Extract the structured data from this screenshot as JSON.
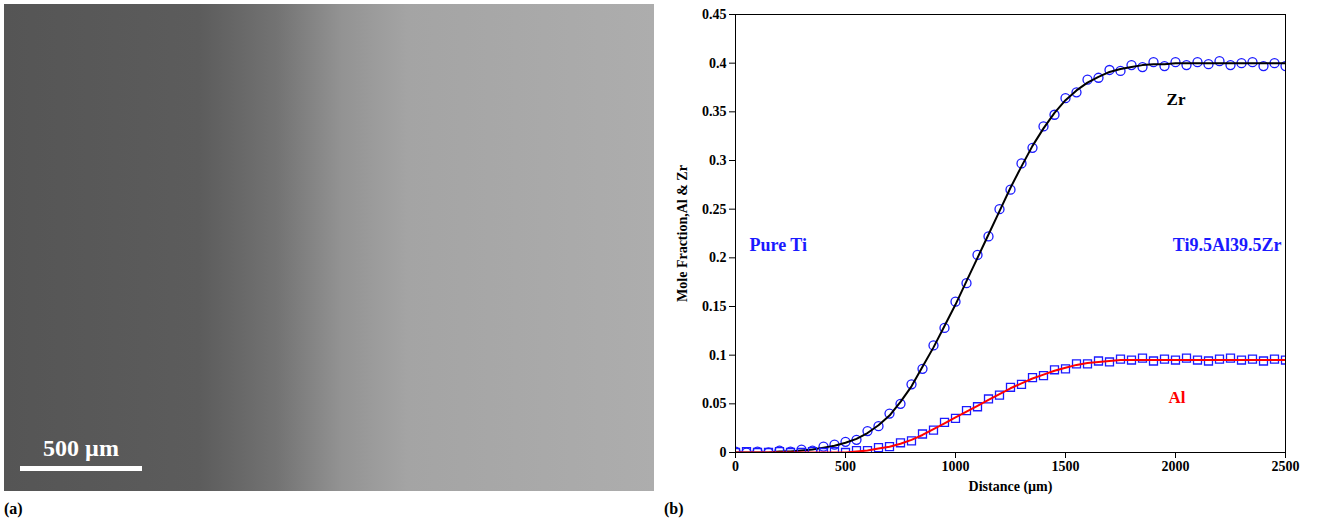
{
  "image": {
    "panel": "(a)",
    "scale_bar": "500 µm"
  },
  "chart_data": {
    "type": "scatter",
    "panel": "(b)",
    "x_label": "Distance (µm)",
    "y_label": "Mole Fraction,Al & Zr",
    "annotations": [
      "Pure Ti",
      "Ti9.5Al39.5Zr"
    ],
    "xlim": [
      0,
      2500
    ],
    "xticks": [
      0,
      500,
      1000,
      1500,
      2000,
      2500
    ],
    "ylim": [
      0,
      0.45
    ],
    "yticks": [
      0,
      0.05,
      0.1,
      0.15,
      0.2,
      0.25,
      0.3,
      0.35,
      0.4,
      0.45
    ],
    "grid": false,
    "x": [
      0,
      50,
      100,
      150,
      200,
      250,
      300,
      350,
      400,
      450,
      500,
      550,
      600,
      650,
      700,
      750,
      800,
      850,
      900,
      950,
      1000,
      1050,
      1100,
      1150,
      1200,
      1250,
      1300,
      1350,
      1400,
      1450,
      1500,
      1550,
      1600,
      1650,
      1700,
      1750,
      1800,
      1850,
      1900,
      1950,
      2000,
      2050,
      2100,
      2150,
      2200,
      2250,
      2300,
      2350,
      2400,
      2450,
      2500
    ],
    "series": [
      {
        "name": "Zr",
        "type": "scatter",
        "marker": "circle",
        "color": "#1a1aff",
        "values": [
          0.001,
          0,
          0.001,
          0,
          0.002,
          0.001,
          0.003,
          0.002,
          0.006,
          0.008,
          0.011,
          0.013,
          0.022,
          0.027,
          0.04,
          0.05,
          0.07,
          0.086,
          0.11,
          0.128,
          0.155,
          0.174,
          0.203,
          0.222,
          0.25,
          0.27,
          0.297,
          0.313,
          0.335,
          0.347,
          0.364,
          0.37,
          0.383,
          0.385,
          0.393,
          0.392,
          0.398,
          0.396,
          0.401,
          0.397,
          0.401,
          0.398,
          0.401,
          0.399,
          0.402,
          0.398,
          0.4,
          0.401,
          0.397,
          0.4,
          0.397
        ]
      },
      {
        "name": "Zr",
        "type": "line",
        "line_style": "solid",
        "color": "#000000",
        "values": [
          0,
          0,
          0,
          0,
          0.001,
          0.001,
          0.002,
          0.003,
          0.005,
          0.007,
          0.01,
          0.014,
          0.02,
          0.028,
          0.038,
          0.052,
          0.068,
          0.088,
          0.108,
          0.13,
          0.152,
          0.176,
          0.2,
          0.224,
          0.248,
          0.272,
          0.294,
          0.315,
          0.333,
          0.349,
          0.362,
          0.372,
          0.38,
          0.386,
          0.391,
          0.394,
          0.396,
          0.398,
          0.399,
          0.399,
          0.4,
          0.4,
          0.4,
          0.4,
          0.4,
          0.4,
          0.4,
          0.4,
          0.4,
          0.4,
          0.4
        ]
      },
      {
        "name": "Al",
        "type": "scatter",
        "marker": "square",
        "color": "#1a1aff",
        "values": [
          0,
          0.001,
          0,
          0,
          0.001,
          0,
          0,
          0.001,
          0,
          0.001,
          0,
          0.002,
          0.002,
          0.005,
          0.006,
          0.01,
          0.012,
          0.019,
          0.023,
          0.031,
          0.035,
          0.043,
          0.047,
          0.055,
          0.059,
          0.067,
          0.07,
          0.077,
          0.079,
          0.085,
          0.086,
          0.091,
          0.091,
          0.094,
          0.093,
          0.096,
          0.095,
          0.097,
          0.094,
          0.096,
          0.095,
          0.097,
          0.095,
          0.094,
          0.096,
          0.097,
          0.095,
          0.096,
          0.094,
          0.096,
          0.095
        ]
      },
      {
        "name": "Al",
        "type": "line",
        "line_style": "solid",
        "color": "#ff0000",
        "values": [
          0,
          0,
          0,
          0,
          0,
          0,
          0,
          0,
          0,
          0,
          0,
          0.001,
          0.002,
          0.004,
          0.006,
          0.009,
          0.013,
          0.018,
          0.024,
          0.03,
          0.036,
          0.042,
          0.048,
          0.054,
          0.06,
          0.066,
          0.071,
          0.076,
          0.08,
          0.084,
          0.087,
          0.09,
          0.092,
          0.093,
          0.094,
          0.095,
          0.095,
          0.095,
          0.095,
          0.095,
          0.095,
          0.095,
          0.095,
          0.095,
          0.095,
          0.095,
          0.095,
          0.095,
          0.095,
          0.095,
          0.095
        ]
      }
    ]
  }
}
